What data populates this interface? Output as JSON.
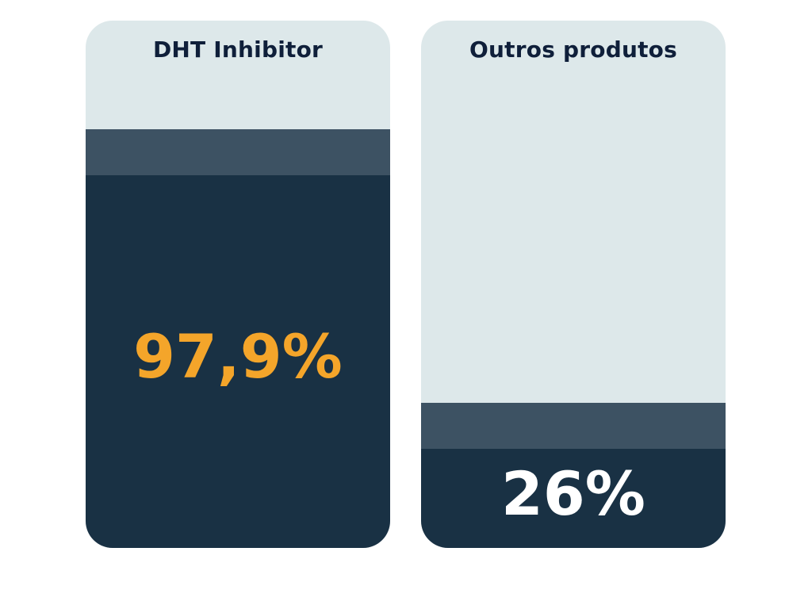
{
  "chart_data": {
    "type": "bar",
    "categories": [
      "DHT Inhibitor",
      "Outros produtos"
    ],
    "values": [
      97.9,
      26
    ],
    "value_labels": [
      "97,9%",
      "26%"
    ],
    "unit": "%",
    "ylim": [
      0,
      100
    ],
    "grid": false,
    "legend": "none"
  },
  "colors": {
    "card_background": "#dde8ea",
    "bar_fill": "#193144",
    "bar_cap": "#3d5263",
    "title_text": "#0f1f3a",
    "value_highlight": "#f4a52a",
    "value_default": "#ffffff"
  }
}
